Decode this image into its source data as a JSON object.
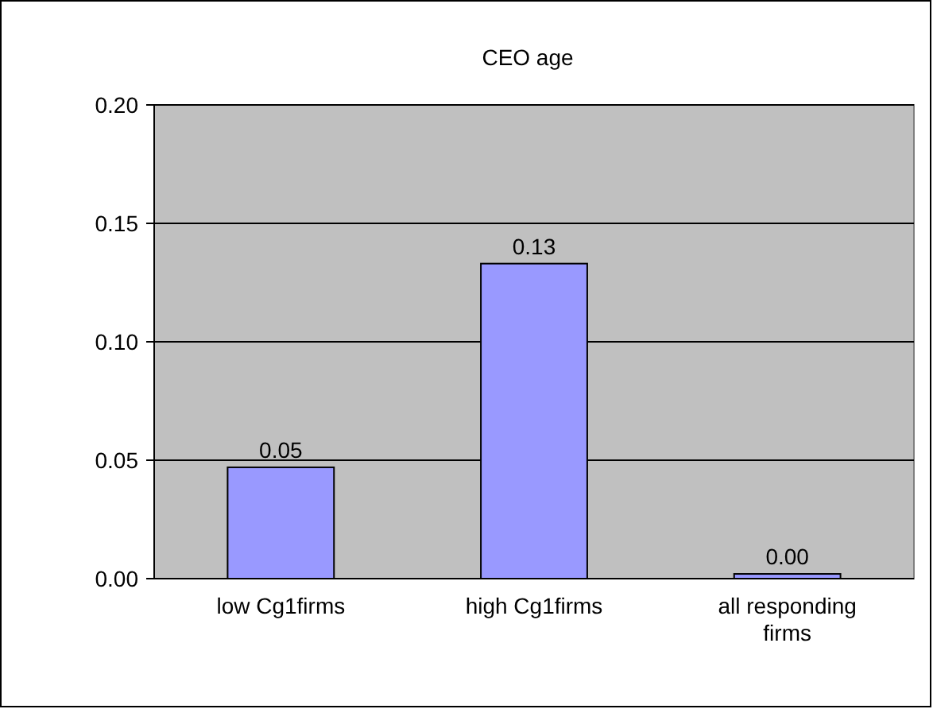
{
  "chart_data": {
    "type": "bar",
    "title": "CEO age",
    "categories": [
      "low Cg1firms",
      "high Cg1firms",
      "all responding firms"
    ],
    "values": [
      0.047,
      0.133,
      0.002
    ],
    "value_labels": [
      "0.05",
      "0.13",
      "0.00"
    ],
    "color": "#9999ff",
    "ylim": [
      0,
      0.2
    ],
    "yticks": [
      {
        "value": 0,
        "label": "0.00"
      },
      {
        "value": 0.05,
        "label": "0.05"
      },
      {
        "value": 0.1,
        "label": "0.10"
      },
      {
        "value": 0.15,
        "label": "0.15"
      },
      {
        "value": 0.2,
        "label": "0.20"
      }
    ],
    "grid": "y"
  }
}
